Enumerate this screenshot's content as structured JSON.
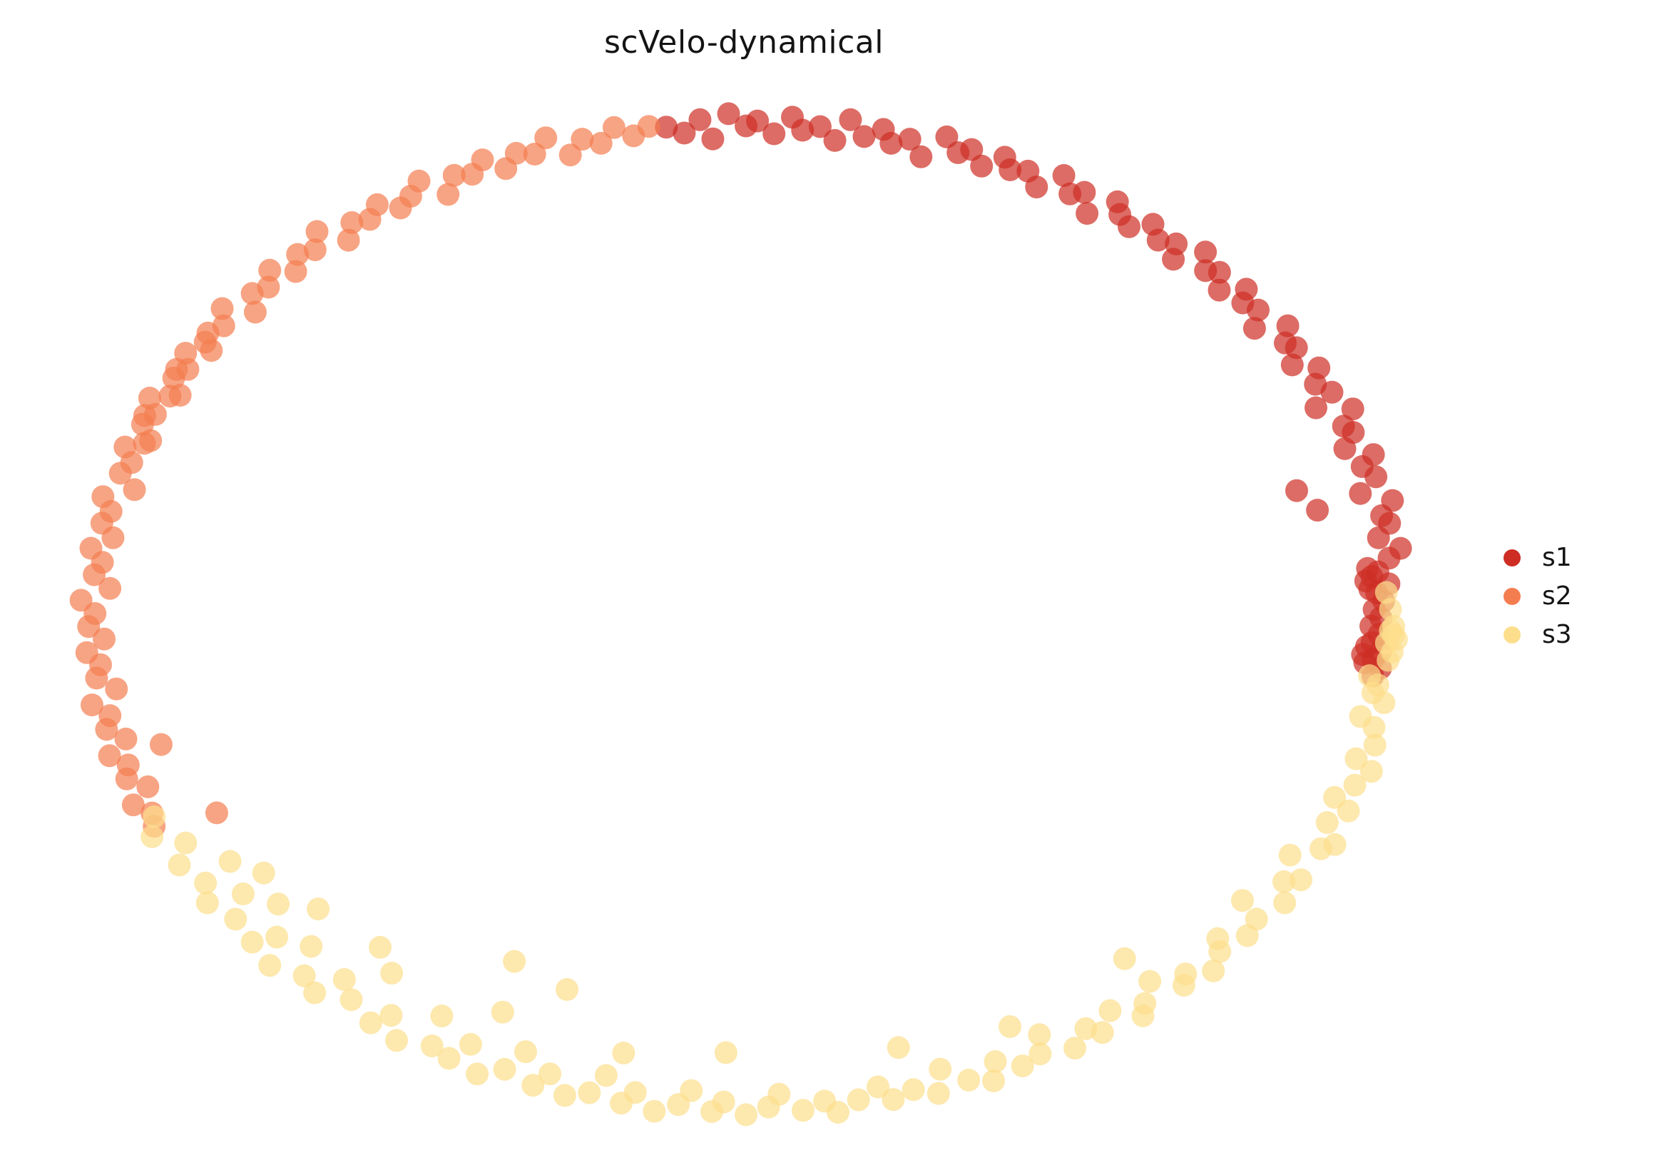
{
  "title": "scVelo-dynamical",
  "legend": {
    "position": "right",
    "items": [
      {
        "label": "s1",
        "color": "#cd2d23"
      },
      {
        "label": "s2",
        "color": "#f47d50"
      },
      {
        "label": "s3",
        "color": "#fcde8c"
      }
    ]
  },
  "chart_data": {
    "type": "scatter",
    "title": "scVelo-dynamical",
    "description": "Embedding scatter plot (circular manifold) of cells colored by cluster; no axes or ticks shown.",
    "coordinate_system": "polar points [angle_deg, radius]; x = 1.32 * r * cos(angle), y = r * sin(angle)",
    "grid": false,
    "axes_visible": false,
    "legend_position": "right",
    "marker_opacity": 0.7,
    "series": [
      {
        "name": "s1",
        "color": "#cd2d23",
        "points": [
          [
            97,
            1.0
          ],
          [
            95.5,
            0.985
          ],
          [
            94,
            1.01
          ],
          [
            93,
            0.97
          ],
          [
            91.5,
            1.02
          ],
          [
            90,
            0.995
          ],
          [
            89,
            1.005
          ],
          [
            87.5,
            0.98
          ],
          [
            86,
            1.015
          ],
          [
            85,
            0.99
          ],
          [
            83.5,
            1.0
          ],
          [
            82,
            0.975
          ],
          [
            81,
            1.02
          ],
          [
            79.5,
            0.99
          ],
          [
            78,
            1.01
          ],
          [
            77,
            0.985
          ],
          [
            75.5,
            1.0
          ],
          [
            74,
            0.97
          ],
          [
            72.5,
            1.02
          ],
          [
            71,
            0.995
          ],
          [
            70,
            1.008
          ],
          [
            68.5,
            0.982
          ],
          [
            67,
            1.012
          ],
          [
            66,
            0.992
          ],
          [
            64.5,
            1.001
          ],
          [
            63,
            0.978
          ],
          [
            61.5,
            1.018
          ],
          [
            60,
            0.99
          ],
          [
            59,
            1.004
          ],
          [
            57.5,
            0.97
          ],
          [
            56,
            1.015
          ],
          [
            55,
            0.996
          ],
          [
            53.5,
            0.984
          ],
          [
            52,
            1.01
          ],
          [
            50.5,
            0.99
          ],
          [
            49,
            1.002
          ],
          [
            48,
            0.976
          ],
          [
            46.5,
            1.02
          ],
          [
            45,
            0.993
          ],
          [
            44,
            1.006
          ],
          [
            42.5,
            0.981
          ],
          [
            41,
            1.013
          ],
          [
            40,
            0.991
          ],
          [
            38.5,
            1.0
          ],
          [
            37,
            0.973
          ],
          [
            35.5,
            1.017
          ],
          [
            34,
            0.994
          ],
          [
            33,
            1.003
          ],
          [
            31.5,
            0.979
          ],
          [
            30,
            1.011
          ],
          [
            28.5,
            0.99
          ],
          [
            27,
            1.005
          ],
          [
            26,
            0.969
          ],
          [
            24.5,
            1.019
          ],
          [
            23,
            0.992
          ],
          [
            22,
            1.001
          ],
          [
            20.5,
            0.977
          ],
          [
            19,
            1.014
          ],
          [
            18,
            0.99
          ],
          [
            17,
            0.88
          ],
          [
            16.5,
            1.004
          ],
          [
            15,
            0.972
          ],
          [
            14,
            0.9
          ],
          [
            13.5,
            1.016
          ],
          [
            12,
            0.993
          ],
          [
            11,
            1.002
          ],
          [
            9.5,
            0.98
          ],
          [
            8,
            1.01
          ],
          [
            7,
            0.99
          ],
          [
            6,
            0.955
          ],
          [
            5.5,
            0.97
          ],
          [
            5,
            0.96
          ],
          [
            4.5,
            0.95
          ],
          [
            4,
            0.985
          ],
          [
            3.5,
            0.955
          ],
          [
            3,
            0.965
          ],
          [
            2,
            0.975
          ],
          [
            1,
            0.96
          ],
          [
            0,
            0.97
          ],
          [
            -1,
            0.955
          ],
          [
            -2,
            0.968
          ],
          [
            -3,
            0.958
          ],
          [
            -3.5,
            0.95
          ],
          [
            -4,
            0.972
          ],
          [
            -4.5,
            0.945
          ],
          [
            -5,
            0.962
          ],
          [
            -5.5,
            0.95
          ],
          [
            -6,
            0.975
          ],
          [
            -7,
            0.965
          ]
        ]
      },
      {
        "name": "s2",
        "color": "#f47d50",
        "points": [
          [
            98.5,
            1.005
          ],
          [
            100,
            0.99
          ],
          [
            101.5,
            1.012
          ],
          [
            103,
            0.985
          ],
          [
            104.5,
            1.0
          ],
          [
            106,
            0.974
          ],
          [
            107.5,
            1.018
          ],
          [
            109,
            0.992
          ],
          [
            110.5,
            1.003
          ],
          [
            112,
            0.98
          ],
          [
            113.5,
            1.01
          ],
          [
            115,
            0.99
          ],
          [
            116.5,
            1.0
          ],
          [
            118,
            0.97
          ],
          [
            119.5,
            1.015
          ],
          [
            121,
            0.995
          ],
          [
            122.5,
            0.983
          ],
          [
            124,
            1.008
          ],
          [
            125.5,
            0.99
          ],
          [
            127,
            1.001
          ],
          [
            128.5,
            0.976
          ],
          [
            130,
            1.02
          ],
          [
            131.5,
            0.994
          ],
          [
            133,
            1.005
          ],
          [
            134.5,
            0.982
          ],
          [
            136,
            1.012
          ],
          [
            137.5,
            0.99
          ],
          [
            139,
            1.0
          ],
          [
            140.5,
            0.972
          ],
          [
            142,
            1.016
          ],
          [
            143.5,
            0.993
          ],
          [
            145,
            1.004
          ],
          [
            146,
            0.997
          ],
          [
            146.5,
            0.98
          ],
          [
            148,
            1.01
          ],
          [
            149.5,
            0.99
          ],
          [
            150,
            1.005
          ],
          [
            151,
            1.0
          ],
          [
            152.5,
            0.975
          ],
          [
            153,
            0.988
          ],
          [
            154,
            1.014
          ],
          [
            155.5,
            0.992
          ],
          [
            156,
            1.006
          ],
          [
            157,
            1.002
          ],
          [
            158.5,
            0.978
          ],
          [
            159,
            0.985
          ],
          [
            160,
            1.01
          ],
          [
            161.5,
            0.99
          ],
          [
            163,
            1.0
          ],
          [
            164.5,
            0.97
          ],
          [
            166,
            1.013
          ],
          [
            167.5,
            0.994
          ],
          [
            169,
            1.003
          ],
          [
            170.5,
            0.981
          ],
          [
            172,
            1.011
          ],
          [
            173.5,
            0.99
          ],
          [
            175,
            1.0
          ],
          [
            176.5,
            0.974
          ],
          [
            178,
            1.017
          ],
          [
            179.5,
            0.995
          ],
          [
            181,
            1.005
          ],
          [
            182.5,
            0.982
          ],
          [
            184,
            1.01
          ],
          [
            185.5,
            0.991
          ],
          [
            187,
            1.0
          ],
          [
            188.5,
            0.973
          ],
          [
            190,
            1.015
          ],
          [
            191.5,
            0.992
          ],
          [
            193,
            1.003
          ],
          [
            194.5,
            0.979
          ],
          [
            196,
            1.012
          ],
          [
            197.5,
            0.99
          ],
          [
            199,
            1.001
          ],
          [
            200.5,
            0.976
          ],
          [
            202,
            1.01
          ],
          [
            203.5,
            0.99
          ],
          [
            205,
            0.998
          ],
          [
            206,
            0.9
          ],
          [
            196,
            0.93
          ]
        ]
      },
      {
        "name": "s3",
        "color": "#fcde8c",
        "points": [
          [
            204,
            0.99
          ],
          [
            206,
            1.01
          ],
          [
            208,
            0.97
          ],
          [
            210,
            1.0
          ],
          [
            212,
            0.93
          ],
          [
            213,
            0.985
          ],
          [
            215,
            1.005
          ],
          [
            215,
            0.9
          ],
          [
            216,
            0.95
          ],
          [
            218,
            0.99
          ],
          [
            219,
            0.92
          ],
          [
            221,
            1.0
          ],
          [
            222,
            0.965
          ],
          [
            222,
            0.88
          ],
          [
            224,
            1.012
          ],
          [
            225,
            0.94
          ],
          [
            227,
            0.99
          ],
          [
            229,
            1.005
          ],
          [
            230,
            0.955
          ],
          [
            230,
            0.87
          ],
          [
            232,
            0.98
          ],
          [
            233,
            0.9
          ],
          [
            235,
            1.0
          ],
          [
            236,
            0.97
          ],
          [
            238,
            1.008
          ],
          [
            240,
            0.93
          ],
          [
            241,
            0.99
          ],
          [
            243,
            1.0
          ],
          [
            243,
            0.78
          ],
          [
            244,
            0.96
          ],
          [
            245,
            0.88
          ],
          [
            246,
            1.01
          ],
          [
            248,
            0.985
          ],
          [
            249,
            0.94
          ],
          [
            250,
            0.8
          ],
          [
            251,
            1.0
          ],
          [
            252,
            0.97
          ],
          [
            254,
            1.005
          ],
          [
            256,
            0.99
          ],
          [
            257,
            0.95
          ],
          [
            258,
            0.9
          ],
          [
            259,
            1.0
          ],
          [
            260,
            0.975
          ],
          [
            262,
            1.008
          ],
          [
            264,
            0.99
          ],
          [
            265,
            0.96
          ],
          [
            267,
            1.0
          ],
          [
            268,
            0.98
          ],
          [
            268,
            0.88
          ],
          [
            270,
            1.005
          ],
          [
            272,
            0.99
          ],
          [
            273,
            0.965
          ],
          [
            275,
            1.0
          ],
          [
            277,
            0.985
          ],
          [
            278,
            1.01
          ],
          [
            280,
            0.99
          ],
          [
            282,
            0.97
          ],
          [
            283,
            1.0
          ],
          [
            285,
            0.988
          ],
          [
            285,
            0.9
          ],
          [
            287,
            1.006
          ],
          [
            288,
            0.96
          ],
          [
            290,
            0.995
          ],
          [
            292,
            1.01
          ],
          [
            293,
            0.975
          ],
          [
            295,
            1.0
          ],
          [
            296,
            0.92
          ],
          [
            297,
            0.99
          ],
          [
            298,
            0.955
          ],
          [
            300,
            1.005
          ],
          [
            302,
            0.98
          ],
          [
            303,
            1.0
          ],
          [
            305,
            0.97
          ],
          [
            307,
            1.008
          ],
          [
            308,
            0.99
          ],
          [
            310,
            0.96
          ],
          [
            310,
            0.9
          ],
          [
            312,
            1.0
          ],
          [
            313,
            0.985
          ],
          [
            315,
            1.01
          ],
          [
            317,
            0.99
          ],
          [
            318,
            0.97
          ],
          [
            320,
            1.0
          ],
          [
            322,
            0.99
          ],
          [
            323,
            0.95
          ],
          [
            325,
            1.005
          ],
          [
            327,
            0.98
          ],
          [
            328,
            1.0
          ],
          [
            330,
            0.96
          ],
          [
            332,
            0.995
          ],
          [
            333,
            1.01
          ],
          [
            335,
            0.98
          ],
          [
            337,
            1.0
          ],
          [
            338,
            0.97
          ],
          [
            340,
            0.99
          ],
          [
            342,
            1.005
          ],
          [
            343,
            0.975
          ],
          [
            345,
            0.995
          ],
          [
            347,
            0.985
          ],
          [
            348,
            0.96
          ],
          [
            350,
            0.99
          ],
          [
            351,
            0.97
          ],
          [
            352,
            0.975
          ],
          [
            353,
            0.96
          ],
          [
            355,
            0.985
          ],
          [
            356,
            0.99
          ],
          [
            357,
            0.98
          ],
          [
            357.5,
            0.995
          ],
          [
            358,
            0.99
          ],
          [
            358.5,
            0.985
          ],
          [
            359,
            0.99
          ],
          [
            1,
            0.985
          ],
          [
            3,
            0.98
          ]
        ]
      }
    ]
  }
}
